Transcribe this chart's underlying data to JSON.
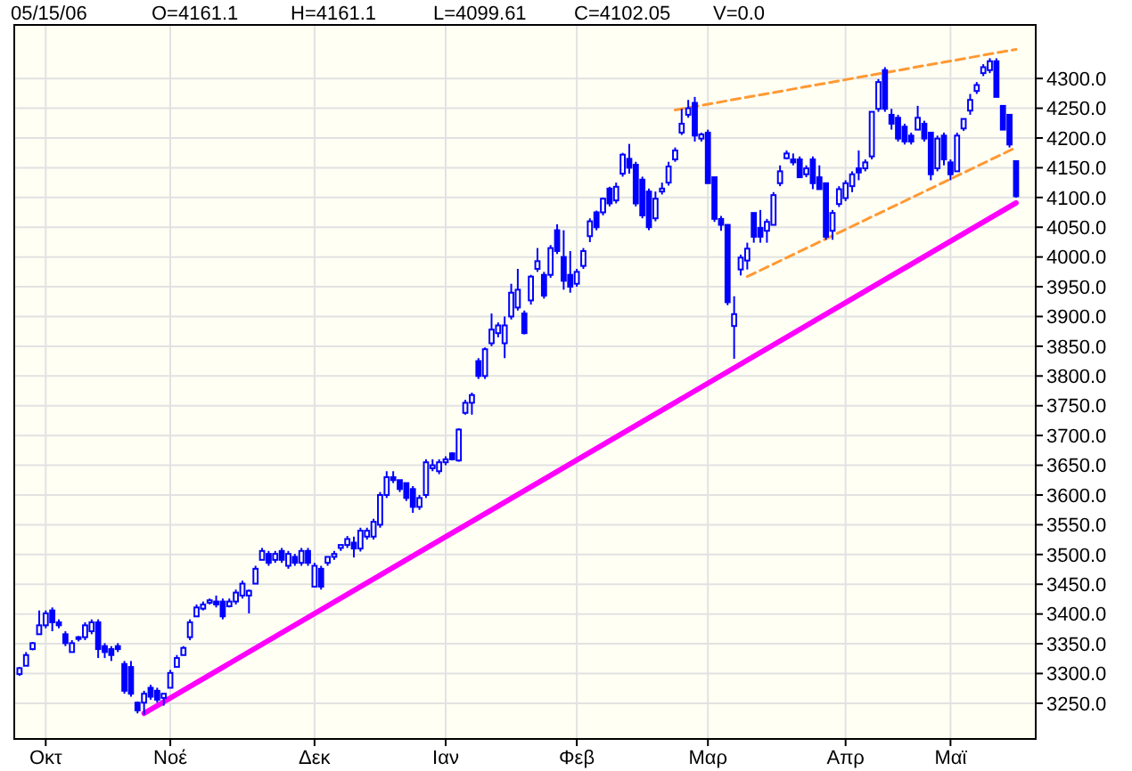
{
  "chart_data": {
    "type": "candlestick",
    "annotations": [
      "05/15/06",
      "O=4161.1",
      "H=4161.1",
      "L=4099.61",
      "C=4102.05",
      "V=0.0"
    ],
    "color": "#0000ff",
    "categories": [
      null,
      null,
      null,
      null,
      "Οκτ",
      null,
      null,
      null,
      null,
      null,
      null,
      null,
      null,
      null,
      null,
      null,
      null,
      null,
      null,
      null,
      null,
      null,
      null,
      "Νοέ",
      null,
      null,
      null,
      null,
      null,
      null,
      null,
      null,
      null,
      null,
      null,
      null,
      null,
      null,
      null,
      null,
      null,
      null,
      null,
      null,
      null,
      "Δεκ",
      null,
      null,
      null,
      null,
      null,
      null,
      null,
      null,
      null,
      null,
      null,
      null,
      null,
      null,
      null,
      null,
      null,
      null,
      null,
      "Ιαν",
      null,
      null,
      null,
      null,
      null,
      null,
      null,
      null,
      null,
      null,
      null,
      null,
      null,
      null,
      null,
      null,
      null,
      null,
      null,
      "Φεβ",
      null,
      null,
      null,
      null,
      null,
      null,
      null,
      null,
      null,
      null,
      null,
      null,
      null,
      null,
      null,
      null,
      null,
      null,
      null,
      "Μαρ",
      null,
      null,
      null,
      null,
      null,
      null,
      null,
      null,
      null,
      null,
      null,
      null,
      null,
      null,
      null,
      null,
      null,
      null,
      null,
      null,
      "Απρ",
      null,
      null,
      null,
      null,
      null,
      null,
      null,
      null,
      null,
      null,
      null,
      null,
      null,
      null,
      null,
      "Μαϊ",
      null,
      null,
      null,
      null,
      null,
      null,
      null,
      null,
      null,
      null
    ],
    "ohlc": [
      [
        3299,
        3311,
        3296,
        3309
      ],
      [
        3313,
        3336,
        3313,
        3331
      ],
      [
        3341,
        3353,
        3339,
        3351
      ],
      [
        3366,
        3406,
        3366,
        3381
      ],
      [
        3381,
        3406,
        3376,
        3401
      ],
      [
        3406,
        3411,
        3371,
        3386
      ],
      [
        3386,
        3391,
        3376,
        3381
      ],
      [
        3366,
        3371,
        3346,
        3351
      ],
      [
        3336,
        3356,
        3336,
        3351
      ],
      [
        3359,
        3363,
        3354,
        3361
      ],
      [
        3361,
        3386,
        3356,
        3381
      ],
      [
        3371,
        3391,
        3366,
        3386
      ],
      [
        3386,
        3391,
        3326,
        3341
      ],
      [
        3346,
        3351,
        3326,
        3336
      ],
      [
        3341,
        3346,
        3321,
        3331
      ],
      [
        3346,
        3351,
        3336,
        3341
      ],
      [
        3316,
        3321,
        3266,
        3271
      ],
      [
        3311,
        3321,
        3261,
        3266
      ],
      [
        3251,
        3253,
        3233,
        3238
      ],
      [
        3251,
        3271,
        3231,
        3266
      ],
      [
        3276,
        3281,
        3256,
        3261
      ],
      [
        3271,
        3276,
        3251,
        3256
      ],
      [
        3259,
        3266,
        3246,
        3266
      ],
      [
        3276,
        3306,
        3276,
        3301
      ],
      [
        3311,
        3331,
        3311,
        3326
      ],
      [
        3331,
        3346,
        3331,
        3343
      ],
      [
        3361,
        3391,
        3356,
        3386
      ],
      [
        3396,
        3416,
        3396,
        3411
      ],
      [
        3409,
        3421,
        3406,
        3416
      ],
      [
        3419,
        3426,
        3416,
        3423
      ],
      [
        3421,
        3431,
        3411,
        3416
      ],
      [
        3421,
        3426,
        3391,
        3396
      ],
      [
        3413,
        3426,
        3411,
        3421
      ],
      [
        3421,
        3441,
        3416,
        3436
      ],
      [
        3431,
        3456,
        3426,
        3451
      ],
      [
        3431,
        3441,
        3401,
        3439
      ],
      [
        3451,
        3481,
        3451,
        3476
      ],
      [
        3491,
        3511,
        3491,
        3506
      ],
      [
        3501,
        3506,
        3481,
        3486
      ],
      [
        3491,
        3506,
        3486,
        3501
      ],
      [
        3506,
        3511,
        3486,
        3491
      ],
      [
        3481,
        3506,
        3476,
        3501
      ],
      [
        3496,
        3501,
        3481,
        3486
      ],
      [
        3486,
        3511,
        3481,
        3506
      ],
      [
        3506,
        3511,
        3481,
        3486
      ],
      [
        3446,
        3486,
        3446,
        3481
      ],
      [
        3476,
        3481,
        3441,
        3446
      ],
      [
        3486,
        3496,
        3481,
        3496
      ],
      [
        3496,
        3506,
        3491,
        3501
      ],
      [
        3511,
        3516,
        3506,
        3516
      ],
      [
        3516,
        3531,
        3511,
        3526
      ],
      [
        3520,
        3530,
        3495,
        3510
      ],
      [
        3510,
        3545,
        3505,
        3540
      ],
      [
        3530,
        3545,
        3525,
        3540
      ],
      [
        3530,
        3560,
        3525,
        3555
      ],
      [
        3550,
        3605,
        3545,
        3600
      ],
      [
        3600,
        3640,
        3595,
        3630
      ],
      [
        3630,
        3640,
        3620,
        3625
      ],
      [
        3625,
        3625,
        3605,
        3610
      ],
      [
        3620,
        3620,
        3590,
        3595
      ],
      [
        3610,
        3615,
        3570,
        3580
      ],
      [
        3580,
        3600,
        3575,
        3595
      ],
      [
        3600,
        3660,
        3595,
        3655
      ],
      [
        3645,
        3660,
        3640,
        3650
      ],
      [
        3640,
        3660,
        3635,
        3655
      ],
      [
        3655,
        3665,
        3650,
        3660
      ],
      [
        3670,
        3672,
        3658,
        3660
      ],
      [
        3658,
        3712,
        3656,
        3710
      ],
      [
        3738,
        3760,
        3735,
        3755
      ],
      [
        3755,
        3772,
        3735,
        3768
      ],
      [
        3825,
        3830,
        3795,
        3800
      ],
      [
        3800,
        3848,
        3795,
        3845
      ],
      [
        3855,
        3905,
        3850,
        3878
      ],
      [
        3872,
        3890,
        3865,
        3885
      ],
      [
        3855,
        3900,
        3830,
        3885
      ],
      [
        3900,
        3955,
        3895,
        3940
      ],
      [
        3915,
        3980,
        3910,
        3945
      ],
      [
        3905,
        3910,
        3870,
        3872
      ],
      [
        3927,
        3970,
        3920,
        3967
      ],
      [
        3980,
        4015,
        3975,
        3993
      ],
      [
        3970,
        3975,
        3930,
        3935
      ],
      [
        3970,
        4020,
        3965,
        4015
      ],
      [
        4045,
        4055,
        4005,
        4010
      ],
      [
        4000,
        4045,
        3945,
        3960
      ],
      [
        3970,
        4010,
        3940,
        3950
      ],
      [
        3955,
        3980,
        3950,
        3975
      ],
      [
        3985,
        4015,
        3980,
        4010
      ],
      [
        4035,
        4065,
        4025,
        4060
      ],
      [
        4075,
        4078,
        4045,
        4050
      ],
      [
        4075,
        4100,
        4070,
        4098
      ],
      [
        4115,
        4118,
        4085,
        4090
      ],
      [
        4095,
        4125,
        4090,
        4118
      ],
      [
        4140,
        4175,
        4135,
        4172
      ],
      [
        4165,
        4190,
        4140,
        4150
      ],
      [
        4155,
        4160,
        4085,
        4090
      ],
      [
        4130,
        4135,
        4065,
        4070
      ],
      [
        4110,
        4115,
        4045,
        4050
      ],
      [
        4065,
        4110,
        4060,
        4098
      ],
      [
        4110,
        4125,
        4105,
        4115
      ],
      [
        4125,
        4160,
        4120,
        4152
      ],
      [
        4164,
        4184,
        4160,
        4179
      ],
      [
        4209,
        4249,
        4205,
        4224
      ],
      [
        4239,
        4264,
        4234,
        4250
      ],
      [
        4259,
        4269,
        4194,
        4204
      ],
      [
        4199,
        4209,
        4194,
        4206
      ],
      [
        4209,
        4214,
        4124,
        4124
      ],
      [
        4134,
        4134,
        4059,
        4064
      ],
      [
        4064,
        4069,
        4044,
        4054
      ],
      [
        4054,
        4054,
        3919,
        3924
      ],
      [
        3884,
        3934,
        3829,
        3904
      ],
      [
        3979,
        4004,
        3969,
        3999
      ],
      [
        3994,
        4024,
        3979,
        4014
      ],
      [
        4074,
        4074,
        4024,
        4034
      ],
      [
        4049,
        4079,
        4024,
        4034
      ],
      [
        4044,
        4064,
        4024,
        4059
      ],
      [
        4054,
        4109,
        4054,
        4104
      ],
      [
        4124,
        4154,
        4119,
        4144
      ],
      [
        4166,
        4179,
        4164,
        4174
      ],
      [
        4164,
        4174,
        4154,
        4159
      ],
      [
        4164,
        4169,
        4134,
        4134
      ],
      [
        4139,
        4154,
        4134,
        4149
      ],
      [
        4164,
        4169,
        4114,
        4124
      ],
      [
        4134,
        4154,
        4114,
        4114
      ],
      [
        4124,
        4124,
        4029,
        4034
      ],
      [
        4044,
        4079,
        4029,
        4074
      ],
      [
        4089,
        4119,
        4084,
        4114
      ],
      [
        4099,
        4129,
        4094,
        4124
      ],
      [
        4119,
        4144,
        4109,
        4139
      ],
      [
        4149,
        4179,
        4129,
        4142
      ],
      [
        4149,
        4164,
        4144,
        4159
      ],
      [
        4169,
        4244,
        4164,
        4244
      ],
      [
        4249,
        4299,
        4244,
        4294
      ],
      [
        4314,
        4319,
        4244,
        4249
      ],
      [
        4239,
        4249,
        4214,
        4224
      ],
      [
        4234,
        4239,
        4194,
        4199
      ],
      [
        4219,
        4224,
        4189,
        4194
      ],
      [
        4204,
        4209,
        4189,
        4194
      ],
      [
        4214,
        4254,
        4214,
        4234
      ],
      [
        4224,
        4229,
        4194,
        4199
      ],
      [
        4209,
        4209,
        4129,
        4139
      ],
      [
        4149,
        4204,
        4144,
        4199
      ],
      [
        4204,
        4209,
        4154,
        4164
      ],
      [
        4159,
        4164,
        4129,
        4139
      ],
      [
        4144,
        4209,
        4144,
        4204
      ],
      [
        4216,
        4232,
        4212,
        4232
      ],
      [
        4246,
        4274,
        4239,
        4264
      ],
      [
        4279,
        4294,
        4274,
        4289
      ],
      [
        4309,
        4324,
        4304,
        4319
      ],
      [
        4314,
        4334,
        4309,
        4329
      ],
      [
        4329,
        4334,
        4269,
        4269
      ],
      [
        4254,
        4254,
        4214,
        4214
      ],
      [
        4239,
        4239,
        4184,
        4189
      ],
      [
        4161.1,
        4161.1,
        4099.61,
        4102.05
      ]
    ],
    "series": [
      {
        "type": "line",
        "color": "#ff00ff",
        "line_style": "solid",
        "values": [
          null,
          null,
          null,
          null,
          null,
          null,
          null,
          null,
          null,
          null,
          null,
          null,
          null,
          null,
          null,
          null,
          null,
          null,
          null,
          3233,
          null,
          null,
          null,
          null,
          null,
          null,
          null,
          null,
          null,
          null,
          null,
          null,
          null,
          null,
          null,
          null,
          null,
          null,
          null,
          null,
          null,
          null,
          null,
          null,
          null,
          null,
          null,
          null,
          null,
          null,
          null,
          null,
          null,
          null,
          null,
          null,
          null,
          null,
          null,
          null,
          null,
          null,
          null,
          null,
          null,
          null,
          null,
          null,
          null,
          null,
          null,
          null,
          null,
          null,
          null,
          null,
          null,
          null,
          null,
          null,
          null,
          null,
          null,
          null,
          null,
          null,
          null,
          null,
          null,
          null,
          null,
          null,
          null,
          null,
          null,
          null,
          null,
          null,
          null,
          null,
          null,
          null,
          null,
          null,
          null,
          null,
          null,
          null,
          null,
          null,
          null,
          null,
          null,
          null,
          null,
          null,
          null,
          null,
          null,
          null,
          null,
          null,
          null,
          null,
          null,
          null,
          null,
          null,
          null,
          null,
          null,
          null,
          null,
          null,
          null,
          null,
          null,
          null,
          null,
          null,
          null,
          null,
          null,
          null,
          null,
          null,
          null,
          null,
          null,
          null,
          null,
          null,
          4091
        ]
      },
      {
        "type": "line",
        "color": "#ff9933",
        "line_style": "dashed",
        "values": [
          null,
          null,
          null,
          null,
          null,
          null,
          null,
          null,
          null,
          null,
          null,
          null,
          null,
          null,
          null,
          null,
          null,
          null,
          null,
          null,
          null,
          null,
          null,
          null,
          null,
          null,
          null,
          null,
          null,
          null,
          null,
          null,
          null,
          null,
          null,
          null,
          null,
          null,
          null,
          null,
          null,
          null,
          null,
          null,
          null,
          null,
          null,
          null,
          null,
          null,
          null,
          null,
          null,
          null,
          null,
          null,
          null,
          null,
          null,
          null,
          null,
          null,
          null,
          null,
          null,
          null,
          null,
          null,
          null,
          null,
          null,
          null,
          null,
          null,
          null,
          null,
          null,
          null,
          null,
          null,
          null,
          null,
          null,
          null,
          null,
          null,
          null,
          null,
          null,
          null,
          null,
          null,
          null,
          null,
          null,
          null,
          null,
          null,
          null,
          null,
          4247,
          null,
          null,
          null,
          null,
          null,
          null,
          null,
          null,
          null,
          null,
          null,
          null,
          null,
          null,
          null,
          null,
          null,
          null,
          null,
          null,
          null,
          null,
          null,
          null,
          null,
          null,
          null,
          null,
          null,
          null,
          null,
          null,
          null,
          null,
          null,
          null,
          null,
          null,
          null,
          null,
          null,
          null,
          null,
          null,
          null,
          null,
          null,
          null,
          null,
          null,
          null,
          4349
        ]
      },
      {
        "type": "line",
        "color": "#ff9933",
        "line_style": "dashed",
        "values": [
          null,
          null,
          null,
          null,
          null,
          null,
          null,
          null,
          null,
          null,
          null,
          null,
          null,
          null,
          null,
          null,
          null,
          null,
          null,
          null,
          null,
          null,
          null,
          null,
          null,
          null,
          null,
          null,
          null,
          null,
          null,
          null,
          null,
          null,
          null,
          null,
          null,
          null,
          null,
          null,
          null,
          null,
          null,
          null,
          null,
          null,
          null,
          null,
          null,
          null,
          null,
          null,
          null,
          null,
          null,
          null,
          null,
          null,
          null,
          null,
          null,
          null,
          null,
          null,
          null,
          null,
          null,
          null,
          null,
          null,
          null,
          null,
          null,
          null,
          null,
          null,
          null,
          null,
          null,
          null,
          null,
          null,
          null,
          null,
          null,
          null,
          null,
          null,
          null,
          null,
          null,
          null,
          null,
          null,
          null,
          null,
          null,
          null,
          null,
          null,
          null,
          null,
          null,
          null,
          null,
          null,
          null,
          null,
          null,
          null,
          null,
          3967,
          null,
          null,
          null,
          null,
          null,
          null,
          null,
          null,
          null,
          null,
          null,
          null,
          null,
          null,
          null,
          null,
          null,
          null,
          null,
          null,
          null,
          null,
          null,
          null,
          null,
          null,
          null,
          null,
          null,
          null,
          null,
          null,
          null,
          null,
          null,
          null,
          null,
          null,
          null,
          null,
          4184
        ]
      }
    ],
    "ylim": [
      3190,
      4390
    ],
    "yticks": [
      {
        "value": 3250,
        "label": "3250.0"
      },
      {
        "value": 3300,
        "label": "3300.0"
      },
      {
        "value": 3350,
        "label": "3350.0"
      },
      {
        "value": 3400,
        "label": "3400.0"
      },
      {
        "value": 3450,
        "label": "3450.0"
      },
      {
        "value": 3500,
        "label": "3500.0"
      },
      {
        "value": 3550,
        "label": "3550.0"
      },
      {
        "value": 3600,
        "label": "3600.0"
      },
      {
        "value": 3650,
        "label": "3650.0"
      },
      {
        "value": 3700,
        "label": "3700.0"
      },
      {
        "value": 3750,
        "label": "3750.0"
      },
      {
        "value": 3800,
        "label": "3800.0"
      },
      {
        "value": 3850,
        "label": "3850.0"
      },
      {
        "value": 3900,
        "label": "3900.0"
      },
      {
        "value": 3950,
        "label": "3950.0"
      },
      {
        "value": 4000,
        "label": "4000.0"
      },
      {
        "value": 4050,
        "label": "4050.0"
      },
      {
        "value": 4100,
        "label": "4100.0"
      },
      {
        "value": 4150,
        "label": "4150.0"
      },
      {
        "value": 4200,
        "label": "4200.0"
      },
      {
        "value": 4250,
        "label": "4250.0"
      },
      {
        "value": 4300,
        "label": "4300.0"
      }
    ],
    "grid": true
  }
}
